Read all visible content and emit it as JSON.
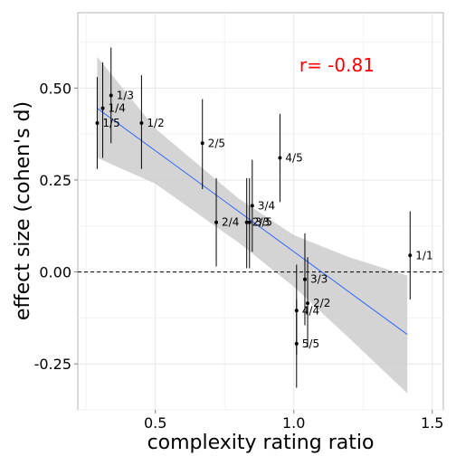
{
  "chart_data": {
    "type": "scatter",
    "xlabel": "complexity rating ratio",
    "ylabel": "effect size (cohen's d)",
    "xlim": [
      0.22,
      1.54
    ],
    "ylim": [
      -0.375,
      0.705
    ],
    "x_ticks": [
      0.5,
      1.0,
      1.5
    ],
    "x_tick_labels": [
      "0.5",
      "1.0",
      "1.5"
    ],
    "y_ticks": [
      -0.25,
      0.0,
      0.25,
      0.5
    ],
    "y_tick_labels": [
      "-0.25",
      "0.00",
      "0.25",
      "0.50"
    ],
    "annotation": {
      "text": "r= -0.81",
      "x": 1.02,
      "y": 0.545,
      "color": "#ff0000"
    },
    "reference_line": {
      "y": 0.0,
      "style": "dashed"
    },
    "regression": {
      "x_start": 0.29,
      "y_start": 0.445,
      "x_end": 1.41,
      "y_end": -0.17,
      "band_upper": [
        [
          0.29,
          0.585
        ],
        [
          0.5,
          0.39
        ],
        [
          0.8,
          0.2
        ],
        [
          1.0,
          0.1
        ],
        [
          1.2,
          0.04
        ],
        [
          1.41,
          -0.01
        ]
      ],
      "band_lower": [
        [
          0.29,
          0.31
        ],
        [
          0.5,
          0.24
        ],
        [
          0.8,
          0.08
        ],
        [
          1.0,
          -0.04
        ],
        [
          1.2,
          -0.18
        ],
        [
          1.41,
          -0.33
        ]
      ],
      "line_color": "#3366ff",
      "band_color": "#cccccc"
    },
    "points": [
      {
        "label": "1/3",
        "x": 0.34,
        "y": 0.48,
        "low": 0.35,
        "high": 0.61
      },
      {
        "label": "1/4",
        "x": 0.31,
        "y": 0.445,
        "low": 0.31,
        "high": 0.57
      },
      {
        "label": "1/5",
        "x": 0.29,
        "y": 0.405,
        "low": 0.28,
        "high": 0.53
      },
      {
        "label": "1/2",
        "x": 0.45,
        "y": 0.405,
        "low": 0.28,
        "high": 0.535
      },
      {
        "label": "2/5",
        "x": 0.67,
        "y": 0.35,
        "low": 0.225,
        "high": 0.47
      },
      {
        "label": "4/5",
        "x": 0.95,
        "y": 0.31,
        "low": 0.19,
        "high": 0.43
      },
      {
        "label": "3/4",
        "x": 0.85,
        "y": 0.18,
        "low": 0.055,
        "high": 0.305
      },
      {
        "label": "2/4",
        "x": 0.72,
        "y": 0.135,
        "low": 0.015,
        "high": 0.255
      },
      {
        "label": "2/3",
        "x": 0.83,
        "y": 0.135,
        "low": 0.01,
        "high": 0.255
      },
      {
        "label": "3/5",
        "x": 0.84,
        "y": 0.135,
        "low": 0.01,
        "high": 0.255
      },
      {
        "label": "1/1",
        "x": 1.42,
        "y": 0.045,
        "low": -0.075,
        "high": 0.165
      },
      {
        "label": "3/3",
        "x": 1.04,
        "y": -0.02,
        "low": -0.145,
        "high": 0.105
      },
      {
        "label": "2/2",
        "x": 1.05,
        "y": -0.085,
        "low": -0.205,
        "high": 0.04
      },
      {
        "label": "4/4",
        "x": 1.01,
        "y": -0.105,
        "low": -0.225,
        "high": 0.02
      },
      {
        "label": "5/5",
        "x": 1.01,
        "y": -0.195,
        "low": -0.315,
        "high": -0.075
      }
    ]
  }
}
